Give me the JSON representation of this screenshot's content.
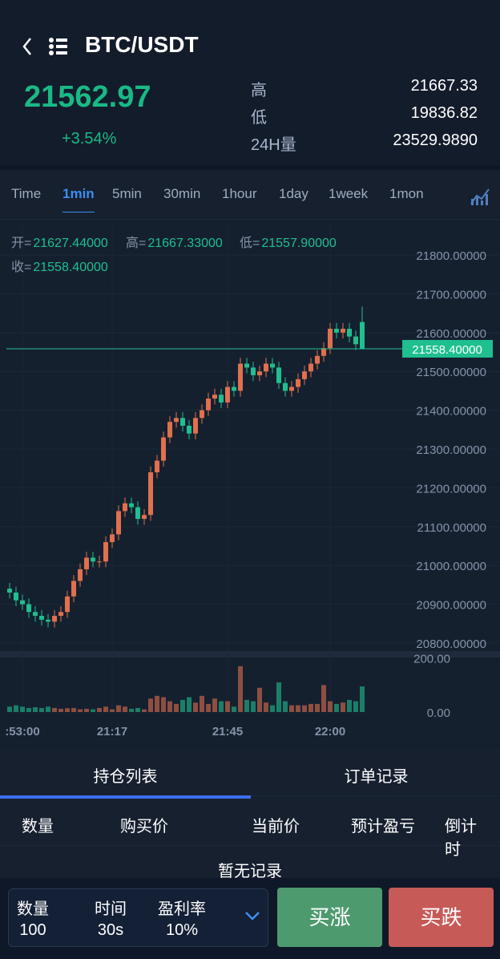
{
  "header": {
    "title": "BTC/USDT",
    "price": "21562.97",
    "change": "+3.54%",
    "stats": [
      {
        "label": "高",
        "value": "21667.33"
      },
      {
        "label": "低",
        "value": "19836.82"
      },
      {
        "label": "24H量",
        "value": "23529.9890"
      }
    ]
  },
  "timeframes": {
    "items": [
      "Time",
      "1min",
      "5min",
      "30min",
      "1hour",
      "1day",
      "1week",
      "1mon"
    ],
    "active": 1
  },
  "chart_data": {
    "type": "candlestick",
    "info": {
      "open": {
        "label": "开=",
        "value": "21627.44000"
      },
      "high": {
        "label": "高=",
        "value": "21667.33000"
      },
      "low": {
        "label": "低=",
        "value": "21557.90000"
      },
      "close": {
        "label": "收=",
        "value": "21558.40000"
      }
    },
    "categories": [
      null,
      null,
      ":53:00",
      null,
      null,
      null,
      null,
      null,
      null,
      null,
      null,
      null,
      null,
      null,
      null,
      null,
      "21:17",
      null,
      null,
      null,
      null,
      null,
      null,
      null,
      null,
      null,
      null,
      null,
      null,
      null,
      null,
      null,
      null,
      null,
      "21:45",
      null,
      null,
      null,
      null,
      null,
      null,
      null,
      null,
      null,
      null,
      null,
      null,
      null,
      null,
      null,
      "22:00",
      null,
      null,
      null,
      null,
      null
    ],
    "open": [
      20940,
      20930,
      20910,
      20900,
      20880,
      20870,
      20860,
      20855,
      20870,
      20880,
      20920,
      20960,
      20990,
      21020,
      21010,
      21010,
      21060,
      21080,
      21140,
      21160,
      21150,
      21120,
      21130,
      21240,
      21270,
      21330,
      21370,
      21380,
      21360,
      21340,
      21380,
      21400,
      21430,
      21440,
      21420,
      21460,
      21450,
      21520,
      21510,
      21490,
      21500,
      21520,
      21510,
      21470,
      21450,
      21460,
      21480,
      21500,
      21520,
      21540,
      21560,
      21610,
      21600,
      21610,
      21590,
      21627.44
    ],
    "high": [
      20955,
      20945,
      20925,
      20915,
      20895,
      20885,
      20875,
      20885,
      20895,
      20935,
      20975,
      21005,
      21035,
      21035,
      21025,
      21075,
      21095,
      21155,
      21175,
      21175,
      21165,
      21145,
      21255,
      21285,
      21345,
      21385,
      21395,
      21395,
      21375,
      21395,
      21415,
      21445,
      21455,
      21455,
      21475,
      21475,
      21535,
      21535,
      21525,
      21515,
      21535,
      21535,
      21525,
      21485,
      21475,
      21495,
      21515,
      21535,
      21555,
      21575,
      21625,
      21625,
      21625,
      21625,
      21605,
      21667.33
    ],
    "low": [
      20915,
      20895,
      20885,
      20865,
      20855,
      20845,
      20840,
      20840,
      20855,
      20865,
      20905,
      20945,
      20975,
      20995,
      20995,
      20995,
      21045,
      21065,
      21125,
      21135,
      21105,
      21105,
      21115,
      21225,
      21255,
      21315,
      21355,
      21345,
      21325,
      21325,
      21365,
      21385,
      21415,
      21405,
      21405,
      21435,
      21435,
      21495,
      21475,
      21475,
      21485,
      21495,
      21455,
      21435,
      21435,
      21445,
      21465,
      21485,
      21505,
      21525,
      21545,
      21585,
      21585,
      21575,
      21555,
      21557.9
    ],
    "close": [
      20930,
      20910,
      20900,
      20880,
      20870,
      20860,
      20855,
      20870,
      20880,
      20920,
      20960,
      20990,
      21020,
      21010,
      21010,
      21060,
      21080,
      21140,
      21160,
      21150,
      21120,
      21130,
      21240,
      21270,
      21330,
      21370,
      21380,
      21360,
      21340,
      21380,
      21400,
      21430,
      21440,
      21420,
      21460,
      21450,
      21520,
      21510,
      21490,
      21500,
      21520,
      21510,
      21470,
      21450,
      21460,
      21480,
      21500,
      21520,
      21540,
      21560,
      21610,
      21600,
      21610,
      21590,
      21570,
      21558.4
    ],
    "up_color": "#e0704e",
    "down_color": "#1fbf8f",
    "ylim": [
      20775,
      21858
    ],
    "yticks": [
      {
        "value": 20800,
        "label": "20800.00000"
      },
      {
        "value": 20900,
        "label": "20900.00000"
      },
      {
        "value": 21000,
        "label": "21000.00000"
      },
      {
        "value": 21100,
        "label": "21100.00000"
      },
      {
        "value": 21200,
        "label": "21200.00000"
      },
      {
        "value": 21300,
        "label": "21300.00000"
      },
      {
        "value": 21400,
        "label": "21400.00000"
      },
      {
        "value": 21500,
        "label": "21500.00000"
      },
      {
        "value": 21600,
        "label": "21600.00000"
      },
      {
        "value": 21700,
        "label": "21700.00000"
      },
      {
        "value": 21800,
        "label": "21800.00000"
      }
    ],
    "last_price": {
      "value": 21558.4,
      "label": "21558.40000"
    },
    "volume": {
      "values": [
        20,
        25,
        20,
        15,
        18,
        15,
        20,
        15,
        12,
        14,
        15,
        10,
        12,
        10,
        15,
        20,
        10,
        25,
        20,
        12,
        15,
        10,
        50,
        60,
        55,
        40,
        30,
        45,
        55,
        35,
        60,
        30,
        50,
        40,
        40,
        20,
        170,
        45,
        40,
        90,
        35,
        25,
        110,
        40,
        25,
        25,
        25,
        30,
        30,
        100,
        40,
        30,
        35,
        45,
        40,
        95
      ],
      "ylim": [
        0,
        220
      ],
      "yticks": [
        {
          "value": 200,
          "label": "200.00"
        },
        {
          "value": 0,
          "label": "0.00"
        }
      ]
    }
  },
  "positions": {
    "tabs": [
      "持仓列表",
      "订单记录"
    ],
    "active": 0,
    "columns": [
      "数量",
      "购买价",
      "当前价",
      "预计盈亏",
      "倒计时"
    ],
    "empty": "暂无记录"
  },
  "order": {
    "fields": [
      {
        "label": "数量",
        "value": "100"
      },
      {
        "label": "时间",
        "value": "30s"
      },
      {
        "label": "盈利率",
        "value": "10%"
      }
    ],
    "buy_up": "买涨",
    "buy_down": "买跌"
  }
}
